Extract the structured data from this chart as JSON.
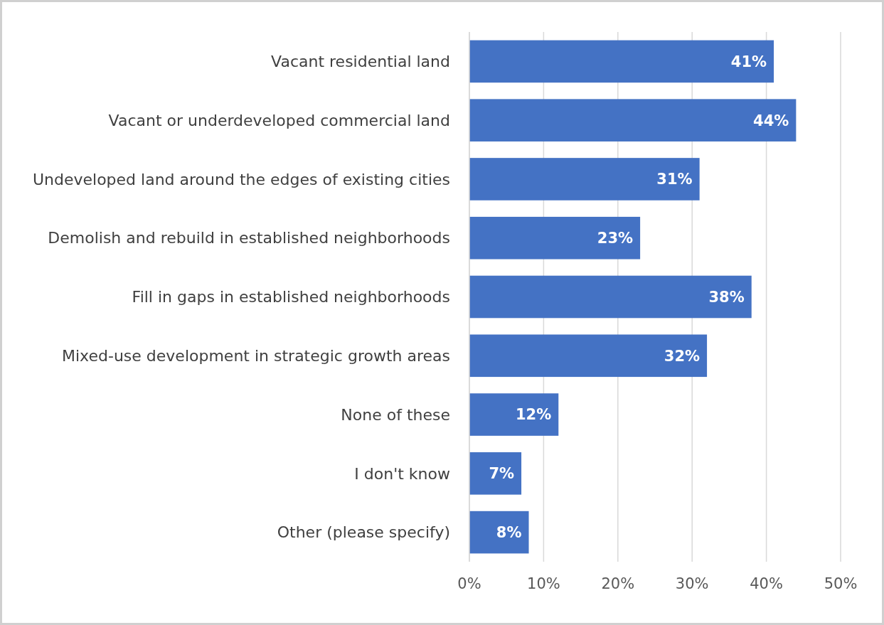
{
  "chart_data": {
    "type": "bar",
    "orientation": "horizontal",
    "categories": [
      "Vacant residential land",
      "Vacant or underdeveloped commercial land",
      "Undeveloped land around the edges of existing cities",
      "Demolish and rebuild in established neighborhoods",
      "Fill in gaps in established neighborhoods",
      "Mixed-use development in strategic growth areas",
      "None of these",
      "I don't know",
      "Other (please specify)"
    ],
    "values": [
      41,
      44,
      31,
      23,
      38,
      32,
      12,
      7,
      8
    ],
    "value_labels": [
      "41%",
      "44%",
      "31%",
      "23%",
      "38%",
      "32%",
      "12%",
      "7%",
      "8%"
    ],
    "color": "#4472c4",
    "xlim": [
      0,
      50
    ],
    "xticks": [
      {
        "value": 0,
        "label": "0%"
      },
      {
        "value": 10,
        "label": "10%"
      },
      {
        "value": 20,
        "label": "20%"
      },
      {
        "value": 30,
        "label": "30%"
      },
      {
        "value": 40,
        "label": "40%"
      },
      {
        "value": 50,
        "label": "50%"
      }
    ],
    "grid": "x"
  }
}
